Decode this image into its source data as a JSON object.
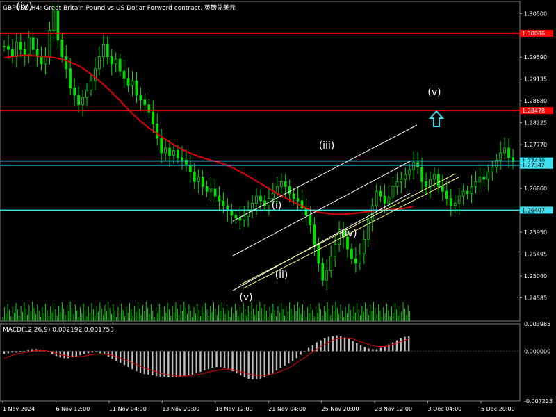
{
  "header": {
    "symbol": "GBPUSD",
    "timeframe": "H4",
    "description": "Great Britain Pound vs US Dollar Forward contract",
    "extra": "英镑兑美元"
  },
  "macd_header": {
    "label": "MACD(12,26,9)",
    "values": "0.002192 0.001753"
  },
  "colors": {
    "background": "#000000",
    "candles": "#00e000",
    "moving_average": "#e00000",
    "horizontal_red": "#ff0000",
    "horizontal_cyan": "#40e0f0",
    "channel": "#ffffff",
    "wedge_line": "#ffff80",
    "arrow": "#40e0f0",
    "macd_hist": "#c0c0c0",
    "macd_signal": "#e00000",
    "axis_text": "#ffffff"
  },
  "chart_data": [
    {
      "type": "candlestick",
      "title": "GBPUSD,H4",
      "ylim": [
        1.241,
        1.3075
      ],
      "y_ticks": [
        1.305,
        1.2959,
        1.29135,
        1.2868,
        1.28225,
        1.2777,
        1.2686,
        1.26405,
        1.2595,
        1.25495,
        1.2504,
        1.24585
      ],
      "x_ticks": [
        "1 Nov 2024",
        "6 Nov 12:00",
        "11 Nov 04:00",
        "13 Nov 20:00",
        "18 Nov 12:00",
        "21 Nov 04:00",
        "25 Nov 20:00",
        "28 Nov 12:00",
        "3 Dec 04:00",
        "5 Dec 20:00"
      ],
      "close_series": [
        1.2982,
        1.2975,
        1.296,
        1.299,
        1.2975,
        1.2965,
        1.3,
        1.2975,
        1.296,
        1.2945,
        1.296,
        1.3015,
        1.3055,
        1.2995,
        1.296,
        1.2935,
        1.2895,
        1.288,
        1.286,
        1.2875,
        1.289,
        1.291,
        1.2935,
        1.296,
        1.2985,
        1.296,
        1.2945,
        1.2955,
        1.293,
        1.2915,
        1.29,
        1.291,
        1.288,
        1.287,
        1.286,
        1.2845,
        1.282,
        1.279,
        1.276,
        1.277,
        1.2755,
        1.2765,
        1.275,
        1.2745,
        1.2735,
        1.272,
        1.27,
        1.271,
        1.269,
        1.268,
        1.2685,
        1.267,
        1.266,
        1.265,
        1.264,
        1.263,
        1.2625,
        1.262,
        1.2628,
        1.264,
        1.2655,
        1.267,
        1.266,
        1.265,
        1.2665,
        1.2675,
        1.269,
        1.27,
        1.269,
        1.2675,
        1.2665,
        1.266,
        1.2645,
        1.263,
        1.261,
        1.257,
        1.253,
        1.2495,
        1.2515,
        1.2545,
        1.257,
        1.26,
        1.2585,
        1.256,
        1.254,
        1.253,
        1.255,
        1.258,
        1.262,
        1.265,
        1.268,
        1.267,
        1.2655,
        1.2668,
        1.269,
        1.27,
        1.2705,
        1.2715,
        1.2725,
        1.274,
        1.273,
        1.27,
        1.269,
        1.2705,
        1.2715,
        1.269,
        1.268,
        1.2665,
        1.265,
        1.2655,
        1.267,
        1.268,
        1.2675,
        1.269,
        1.27,
        1.271,
        1.2705,
        1.272,
        1.273,
        1.2745,
        1.276,
        1.277,
        1.275,
        1.2742
      ],
      "moving_average": [
        1.2958,
        1.296,
        1.2962,
        1.2963,
        1.2962,
        1.2961,
        1.296,
        1.2958,
        1.2955,
        1.295,
        1.2944,
        1.2936,
        1.2925,
        1.2913,
        1.29,
        1.2886,
        1.2871,
        1.2855,
        1.284,
        1.2826,
        1.2814,
        1.2803,
        1.2793,
        1.2783,
        1.2774,
        1.2766,
        1.2759,
        1.2753,
        1.2748,
        1.2744,
        1.274,
        1.2735,
        1.2728,
        1.272,
        1.2712,
        1.2703,
        1.2694,
        1.2685,
        1.2676,
        1.2668,
        1.266,
        1.2653,
        1.2646,
        1.264,
        1.2636,
        1.2634,
        1.2632,
        1.2632,
        1.2633,
        1.2634,
        1.2636,
        1.2638,
        1.264,
        1.2641,
        1.2642,
        1.2643,
        1.2645,
        1.2648
      ],
      "horizontal_levels": [
        {
          "value": 1.30086,
          "color": "red",
          "label": "1.30086"
        },
        {
          "value": 1.28478,
          "color": "red",
          "label": "1.28478"
        },
        {
          "value": 1.2743,
          "color": "cyan",
          "label": "1.27430"
        },
        {
          "value": 1.27342,
          "color": "cyan",
          "label": "1.27342"
        },
        {
          "value": 1.26407,
          "color": "cyan",
          "label": "1.26407"
        }
      ],
      "wave_labels": [
        "(iv)",
        "(v)",
        "(i)",
        "(ii)",
        "(iii)",
        "(iv)",
        "(v)"
      ]
    },
    {
      "type": "macd",
      "title": "MACD(12,26,9)",
      "ylim": [
        -0.00723,
        0.00398
      ],
      "y_ticks": [
        0.003985,
        0.0,
        -0.007223
      ],
      "histogram": [
        -0.0004,
        -0.0003,
        -0.0002,
        -0.0002,
        -0.0001,
        0.0,
        0.0002,
        0.0003,
        0.0003,
        0.0002,
        0.0001,
        -0.0001,
        -0.0004,
        -0.0007,
        -0.0009,
        -0.001,
        -0.001,
        -0.0009,
        -0.0008,
        -0.0006,
        -0.0004,
        -0.0003,
        -0.0002,
        -0.0001,
        -0.0003,
        -0.0005,
        -0.0008,
        -0.0011,
        -0.0014,
        -0.0017,
        -0.002,
        -0.0023,
        -0.0026,
        -0.0029,
        -0.0031,
        -0.0033,
        -0.0034,
        -0.0035,
        -0.0036,
        -0.0037,
        -0.0037,
        -0.0038,
        -0.0038,
        -0.0038,
        -0.0037,
        -0.0036,
        -0.0035,
        -0.0034,
        -0.0032,
        -0.003,
        -0.0028,
        -0.0026,
        -0.0024,
        -0.0023,
        -0.0023,
        -0.0024,
        -0.0026,
        -0.0029,
        -0.0032,
        -0.0035,
        -0.0038,
        -0.004,
        -0.0041,
        -0.0041,
        -0.004,
        -0.0038,
        -0.0035,
        -0.0032,
        -0.0028,
        -0.0024,
        -0.0021,
        -0.0018,
        -0.0014,
        -0.001,
        -0.0005,
        0.0,
        0.0005,
        0.0009,
        0.0013,
        0.0016,
        0.0019,
        0.0021,
        0.0022,
        0.0023,
        0.0022,
        0.002,
        0.0018,
        0.0015,
        0.0012,
        0.0009,
        0.0006,
        0.0004,
        0.0003,
        0.0003,
        0.0005,
        0.0007,
        0.001,
        0.0013,
        0.0016,
        0.0019,
        0.0021,
        0.0022
      ],
      "signal": [
        -0.001,
        -0.0008,
        -0.0006,
        -0.0004,
        -0.0003,
        -0.0002,
        -0.0001,
        0.0,
        0.0001,
        0.0001,
        0.0001,
        0.0,
        -0.0001,
        -0.0003,
        -0.0005,
        -0.0006,
        -0.0007,
        -0.0008,
        -0.0008,
        -0.0008,
        -0.0007,
        -0.0006,
        -0.0005,
        -0.0004,
        -0.0004,
        -0.0004,
        -0.0005,
        -0.0006,
        -0.0008,
        -0.001,
        -0.0012,
        -0.0014,
        -0.0017,
        -0.0019,
        -0.0022,
        -0.0024,
        -0.0026,
        -0.0028,
        -0.003,
        -0.0032,
        -0.0033,
        -0.0034,
        -0.0035,
        -0.0036,
        -0.0036,
        -0.0036,
        -0.0036,
        -0.0035,
        -0.0034,
        -0.0033,
        -0.0032,
        -0.003,
        -0.0029,
        -0.0028,
        -0.0027,
        -0.0026,
        -0.0026,
        -0.0027,
        -0.0028,
        -0.003,
        -0.0031,
        -0.0033,
        -0.0034,
        -0.0035,
        -0.0035,
        -0.0035,
        -0.0034,
        -0.0033,
        -0.0031,
        -0.0029,
        -0.0027,
        -0.0024,
        -0.0021,
        -0.0017,
        -0.0013,
        -0.0009,
        -0.0005,
        -0.0001,
        0.0003,
        0.0007,
        0.001,
        0.0013,
        0.0016,
        0.0018,
        0.0019,
        0.0019,
        0.0019,
        0.0018,
        0.0016,
        0.0014,
        0.0012,
        0.001,
        0.0008,
        0.0007,
        0.0007,
        0.0007,
        0.0008,
        0.001,
        0.0012,
        0.0014,
        0.0016,
        0.0018
      ]
    }
  ]
}
